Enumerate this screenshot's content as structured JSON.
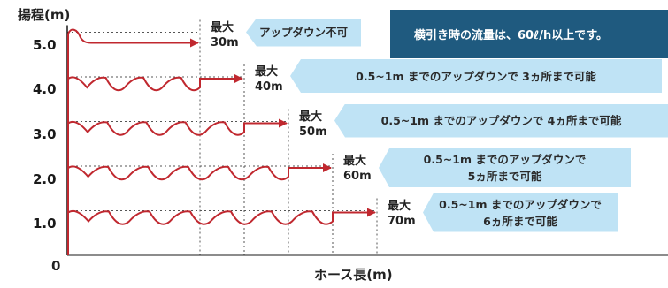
{
  "y_axis_title": "揚程(m)",
  "x_axis_title": "ホース長(m)",
  "origin_label": "0",
  "banner_text": "横引き時の流量は、60ℓ/h以上です。",
  "colors": {
    "curve": "#c0282f",
    "note_bg": "#bfe3f5",
    "banner_bg": "#1f5a7f",
    "grid": "#555555"
  },
  "chart_data": {
    "type": "line",
    "title": "",
    "xlabel": "ホース長(m)",
    "ylabel": "揚程(m)",
    "y_ticks": [
      "1.0",
      "2.0",
      "3.0",
      "4.0",
      "5.0"
    ],
    "ylim": [
      0,
      5.0
    ],
    "xlim": [
      0,
      70
    ],
    "grid": "dashed",
    "series": [
      {
        "head_m": 5.0,
        "max_length_m": 30,
        "ups_and_downs": 0,
        "max_label": [
          "最大",
          "30m"
        ],
        "note": [
          "アップダウン不可"
        ]
      },
      {
        "head_m": 4.0,
        "max_length_m": 40,
        "ups_and_downs": 3,
        "max_label": [
          "最大",
          "40m"
        ],
        "note": [
          "0.5~1m までのアップダウンで 3ヵ所まで可能"
        ]
      },
      {
        "head_m": 3.0,
        "max_length_m": 50,
        "ups_and_downs": 4,
        "max_label": [
          "最大",
          "50m"
        ],
        "note": [
          "0.5~1m までのアップダウンで 4ヵ所まで可能"
        ]
      },
      {
        "head_m": 2.0,
        "max_length_m": 60,
        "ups_and_downs": 5,
        "max_label": [
          "最大",
          "60m"
        ],
        "note": [
          "0.5~1m までのアップダウンで",
          "5ヵ所まで可能"
        ]
      },
      {
        "head_m": 1.0,
        "max_length_m": 70,
        "ups_and_downs": 6,
        "max_label": [
          "最大",
          "70m"
        ],
        "note": [
          "0.5~1m までのアップダウンで",
          "6ヵ所まで可能"
        ]
      }
    ]
  }
}
